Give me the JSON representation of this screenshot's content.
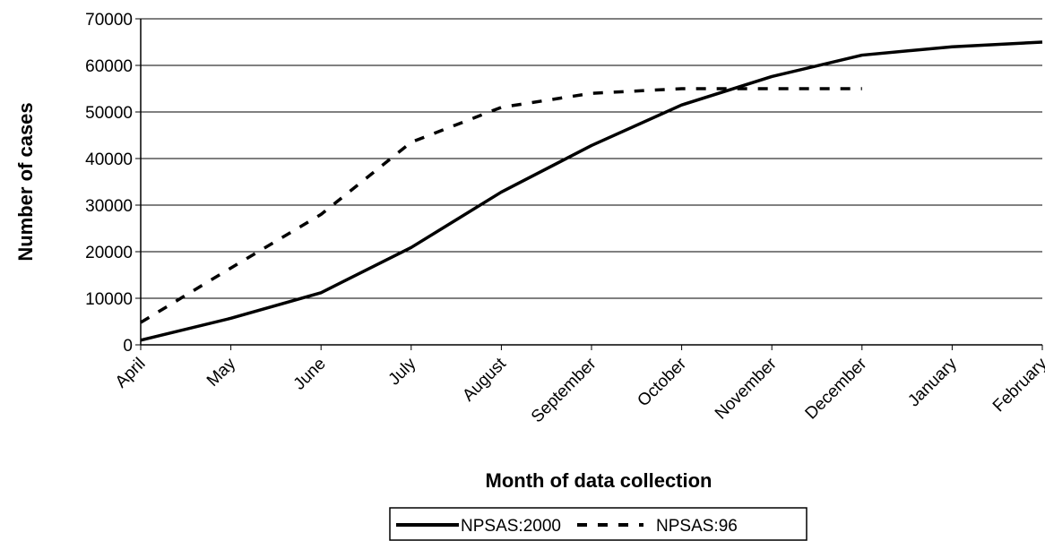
{
  "chart_data": {
    "type": "line",
    "categories": [
      "April",
      "May",
      "June",
      "July",
      "August",
      "September",
      "October",
      "November",
      "December",
      "January",
      "February"
    ],
    "series": [
      {
        "name": "NPSAS:2000",
        "values": [
          1000,
          5700,
          11200,
          20900,
          32800,
          42800,
          51500,
          57600,
          62200,
          64000,
          65000
        ],
        "color": "#000000",
        "style": "solid"
      },
      {
        "name": "NPSAS:96",
        "values": [
          4800,
          16500,
          28000,
          43500,
          51000,
          54000,
          55000,
          55000,
          55000,
          null,
          null
        ],
        "color": "#000000",
        "style": "dashed"
      }
    ],
    "xlabel": "Month of data collection",
    "ylabel": "Number of cases",
    "ylim": [
      0,
      70000
    ],
    "yticks": [
      0,
      10000,
      20000,
      30000,
      40000,
      50000,
      60000,
      70000
    ],
    "grid": true,
    "legend": "bottom"
  }
}
